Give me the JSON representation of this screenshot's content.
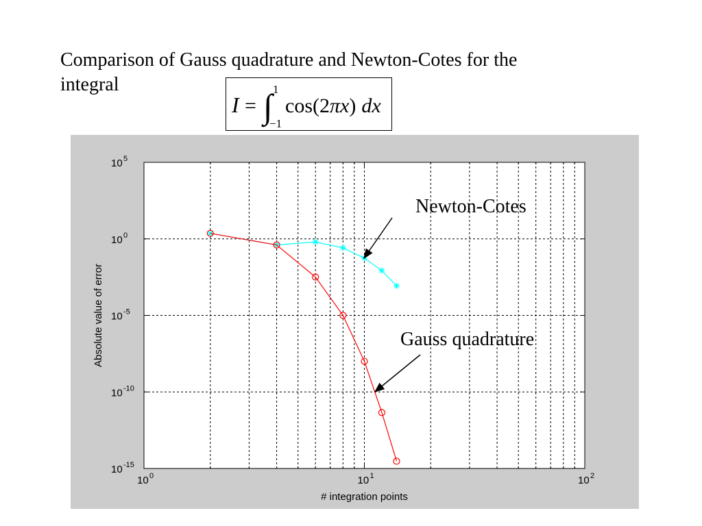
{
  "slide": {
    "title_line1": "Comparison of Gauss quadrature and Newton-Cotes for the",
    "title_line2": "integral"
  },
  "formula": {
    "lhs": "I",
    "equals": "=",
    "integral_sign": "∫",
    "upper_limit": "1",
    "lower_limit": "−1",
    "integrand_prefix": "cos(2",
    "pi": "π",
    "variable": "x",
    "integrand_suffix": ")",
    "differential": "dx"
  },
  "chart_data": {
    "type": "line",
    "xscale": "log",
    "yscale": "log",
    "xlabel": "# integration points",
    "ylabel": "Absolute value of error",
    "xlim": [
      1,
      100
    ],
    "ylim": [
      1e-15,
      100000
    ],
    "grid": true,
    "x_ticks": [
      {
        "value": 1,
        "base": "10",
        "exp": "0"
      },
      {
        "value": 10,
        "base": "10",
        "exp": "1"
      },
      {
        "value": 100,
        "base": "10",
        "exp": "2"
      }
    ],
    "y_ticks": [
      {
        "value": 100000,
        "base": "10",
        "exp": "5"
      },
      {
        "value": 1,
        "base": "10",
        "exp": "0"
      },
      {
        "value": 1e-05,
        "base": "10",
        "exp": "-5"
      },
      {
        "value": 1e-10,
        "base": "10",
        "exp": "-10"
      },
      {
        "value": 1e-15,
        "base": "10",
        "exp": "-15"
      }
    ],
    "series": [
      {
        "name": "Newton-Cotes",
        "color": "#00ffff",
        "marker": "asterisk",
        "x": [
          2,
          4,
          6,
          8,
          10,
          12,
          14
        ],
        "y": [
          2.3,
          0.4,
          0.63,
          0.26,
          0.055,
          0.0085,
          0.00085
        ]
      },
      {
        "name": "Gauss quadrature",
        "color": "#ff0000",
        "marker": "circle",
        "x": [
          2,
          4,
          6,
          8,
          10,
          12,
          14
        ],
        "y": [
          2.3,
          0.4,
          0.0032,
          1e-05,
          1e-08,
          4.5e-12,
          3e-15
        ]
      }
    ],
    "annotations": [
      {
        "text": "Newton-Cotes",
        "series": "Newton-Cotes"
      },
      {
        "text": "Gauss quadrature",
        "series": "Gauss quadrature"
      }
    ]
  }
}
